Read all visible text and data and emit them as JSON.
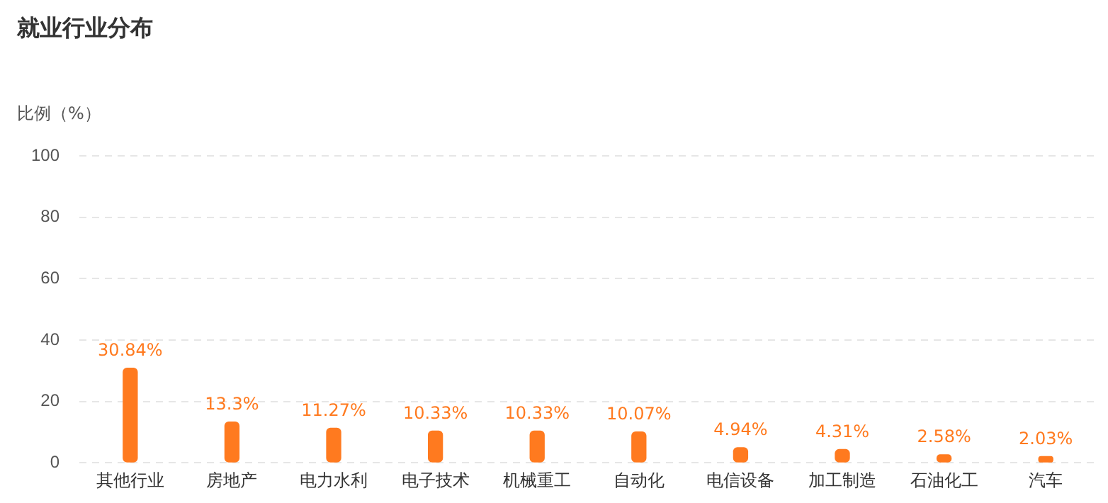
{
  "chart_data": {
    "type": "bar",
    "title": "就业行业分布",
    "ylabel": "比例（%）",
    "categories": [
      "其他行业",
      "房地产",
      "电力水利",
      "电子技术",
      "机械重工",
      "自动化",
      "电信设备",
      "加工制造",
      "石油化工",
      "汽车"
    ],
    "values": [
      30.84,
      13.3,
      11.27,
      10.33,
      10.33,
      10.07,
      4.94,
      4.31,
      2.58,
      2.03
    ],
    "value_labels": [
      "30.84%",
      "13.3%",
      "11.27%",
      "10.33%",
      "10.33%",
      "10.07%",
      "4.94%",
      "4.31%",
      "2.58%",
      "2.03%"
    ],
    "color": "#ff7a1f",
    "ylim": [
      0,
      100
    ],
    "yticks": [
      0,
      20,
      40,
      60,
      80,
      100
    ],
    "grid": "y",
    "legend": false
  }
}
